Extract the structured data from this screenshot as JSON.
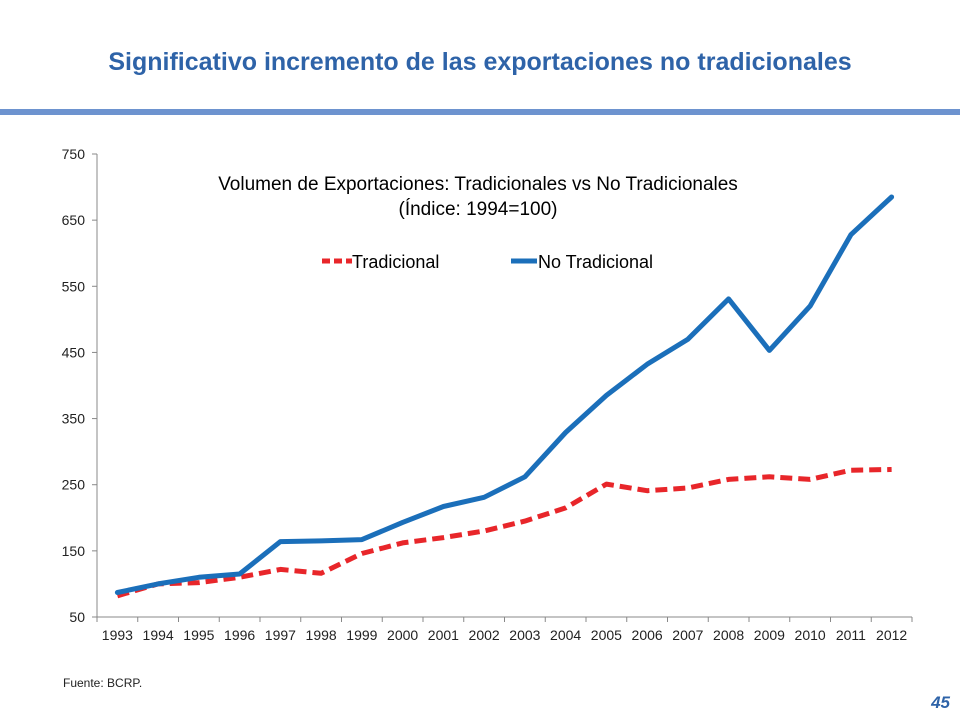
{
  "slide": {
    "title": "Significativo incremento de las exportaciones no tradicionales",
    "source": "Fuente: BCRP.",
    "page_number": "45"
  },
  "colors": {
    "accent": "#2e63a8",
    "rule": "#6d93cf"
  },
  "chart_data": {
    "type": "line",
    "title": "Volumen de Exportaciones: Tradicionales vs No Tradicionales",
    "subtitle": "(Índice: 1994=100)",
    "x": [
      "1993",
      "1994",
      "1995",
      "1996",
      "1997",
      "1998",
      "1999",
      "2000",
      "2001",
      "2002",
      "2003",
      "2004",
      "2005",
      "2006",
      "2007",
      "2008",
      "2009",
      "2010",
      "2011",
      "2012"
    ],
    "ylim": [
      50,
      750
    ],
    "yticks": [
      50,
      150,
      250,
      350,
      450,
      550,
      650,
      750
    ],
    "series": [
      {
        "name": "Tradicional",
        "color": "#e8262a",
        "style": "dashed",
        "values": [
          82,
          100,
          102,
          110,
          122,
          116,
          146,
          162,
          170,
          180,
          195,
          215,
          251,
          241,
          245,
          258,
          262,
          258,
          272,
          273
        ]
      },
      {
        "name": "No Tradicional",
        "color": "#1b6fba",
        "style": "solid",
        "values": [
          87,
          100,
          110,
          115,
          164,
          165,
          167,
          193,
          217,
          231,
          262,
          329,
          385,
          432,
          470,
          531,
          453,
          520,
          628,
          685
        ]
      }
    ],
    "legend": "top-center"
  }
}
